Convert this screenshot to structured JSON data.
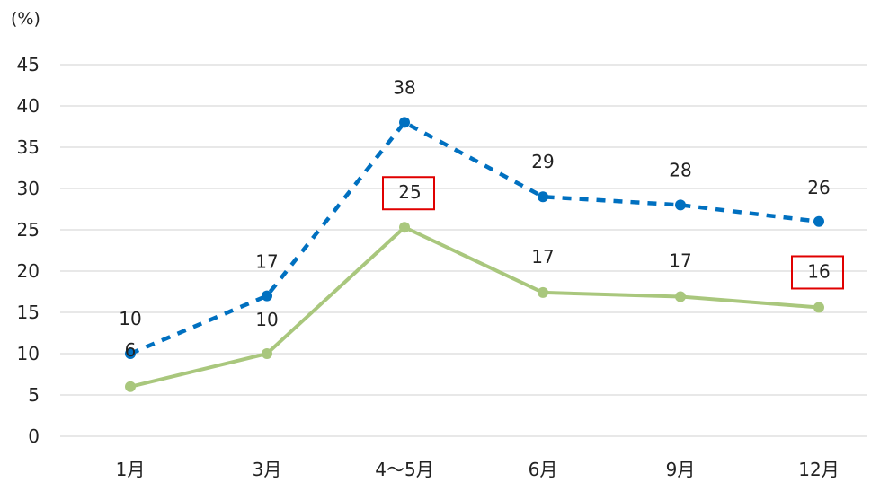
{
  "chart_data": {
    "type": "line",
    "unit_label": "(%)",
    "categories": [
      "1月",
      "3月",
      "4～5月",
      "6月",
      "9月",
      "12月"
    ],
    "ylim": [
      0,
      45
    ],
    "yticks": [
      0,
      5,
      10,
      15,
      20,
      25,
      30,
      35,
      40,
      45
    ],
    "grid": true,
    "series": [
      {
        "key": "dotted",
        "color": "#0070C0",
        "style": "dashed",
        "values": [
          10,
          17,
          38,
          29,
          28,
          26
        ],
        "labels": [
          "10",
          "17",
          "38",
          "29",
          "28",
          "26"
        ]
      },
      {
        "key": "solid",
        "color": "#A9C77D",
        "style": "solid",
        "values": [
          6,
          10,
          25.3,
          17.4,
          16.9,
          15.6
        ],
        "labels": [
          "6",
          "10",
          "25",
          "17",
          "17",
          "16"
        ]
      }
    ],
    "highlight_box_color": "#E00000",
    "highlight_points": [
      {
        "series": "solid",
        "index": 2
      },
      {
        "series": "solid",
        "index": 5
      }
    ]
  }
}
